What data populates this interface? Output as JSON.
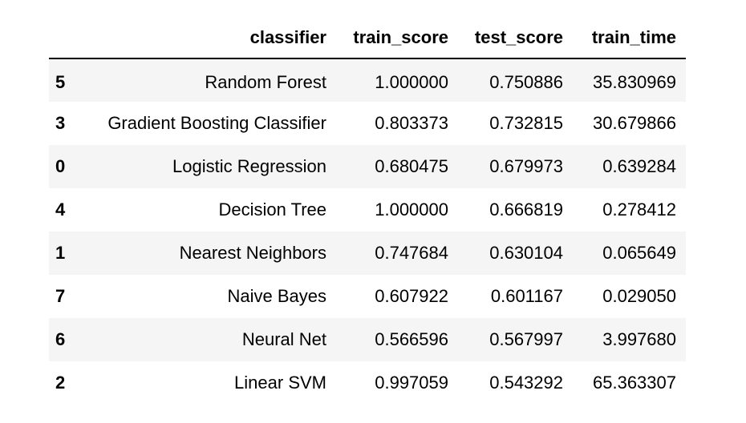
{
  "chart_data": {
    "type": "table",
    "columns": [
      "classifier",
      "train_score",
      "test_score",
      "train_time"
    ],
    "rows": [
      {
        "index": "5",
        "classifier": "Random Forest",
        "train_score": "1.000000",
        "test_score": "0.750886",
        "train_time": "35.830969"
      },
      {
        "index": "3",
        "classifier": "Gradient Boosting Classifier",
        "train_score": "0.803373",
        "test_score": "0.732815",
        "train_time": "30.679866"
      },
      {
        "index": "0",
        "classifier": "Logistic Regression",
        "train_score": "0.680475",
        "test_score": "0.679973",
        "train_time": "0.639284"
      },
      {
        "index": "4",
        "classifier": "Decision Tree",
        "train_score": "1.000000",
        "test_score": "0.666819",
        "train_time": "0.278412"
      },
      {
        "index": "1",
        "classifier": "Nearest Neighbors",
        "train_score": "0.747684",
        "test_score": "0.630104",
        "train_time": "0.065649"
      },
      {
        "index": "7",
        "classifier": "Naive Bayes",
        "train_score": "0.607922",
        "test_score": "0.601167",
        "train_time": "0.029050"
      },
      {
        "index": "6",
        "classifier": "Neural Net",
        "train_score": "0.566596",
        "test_score": "0.567997",
        "train_time": "3.997680"
      },
      {
        "index": "2",
        "classifier": "Linear SVM",
        "train_score": "0.997059",
        "test_score": "0.543292",
        "train_time": "65.363307"
      }
    ]
  }
}
